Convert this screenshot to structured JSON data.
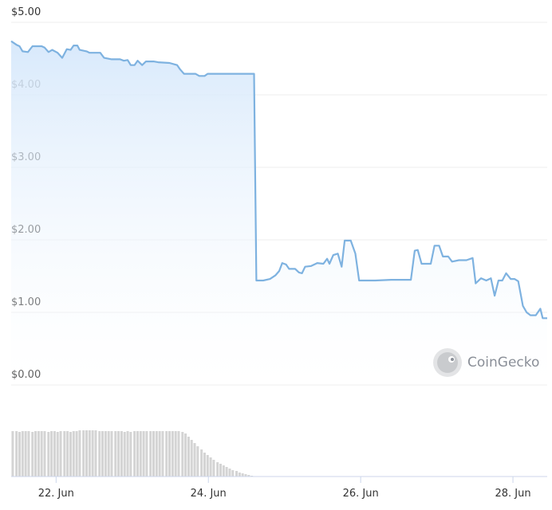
{
  "chart_data": {
    "type": "area",
    "series": [
      {
        "name": "Price",
        "color": "#7eb2e0",
        "x": [
          21.41,
          21.48,
          21.52,
          21.56,
          21.63,
          21.69,
          21.81,
          21.85,
          21.9,
          21.95,
          22.02,
          22.08,
          22.14,
          22.19,
          22.23,
          22.28,
          22.31,
          22.4,
          22.44,
          22.58,
          22.63,
          22.73,
          22.84,
          22.89,
          22.94,
          22.98,
          23.03,
          23.07,
          23.13,
          23.18,
          23.28,
          23.34,
          23.49,
          23.59,
          23.63,
          23.68,
          23.83,
          23.88,
          23.95,
          23.99,
          24.2,
          24.41,
          24.53,
          24.6,
          24.63,
          24.72,
          24.81,
          24.88,
          24.93,
          24.97,
          25.02,
          25.06,
          25.14,
          25.19,
          25.23,
          25.27,
          25.35,
          25.43,
          25.51,
          25.56,
          25.59,
          25.64,
          25.7,
          25.75,
          25.79,
          25.87,
          25.93,
          25.98,
          26.19,
          26.4,
          26.66,
          26.71,
          26.75,
          26.8,
          26.92,
          26.97,
          27.03,
          27.08,
          27.15,
          27.2,
          27.29,
          27.39,
          27.47,
          27.51,
          27.58,
          27.65,
          27.71,
          27.76,
          27.81,
          27.86,
          27.91,
          27.97,
          28.02,
          28.07,
          28.13,
          28.18,
          28.23,
          28.3,
          28.36,
          28.39,
          28.45
        ],
        "values": [
          4.74,
          4.69,
          4.67,
          4.6,
          4.59,
          4.67,
          4.67,
          4.65,
          4.59,
          4.62,
          4.58,
          4.51,
          4.63,
          4.62,
          4.68,
          4.68,
          4.62,
          4.6,
          4.58,
          4.58,
          4.51,
          4.49,
          4.49,
          4.47,
          4.48,
          4.41,
          4.41,
          4.47,
          4.41,
          4.46,
          4.46,
          4.45,
          4.44,
          4.41,
          4.35,
          4.29,
          4.29,
          4.26,
          4.26,
          4.29,
          4.29,
          4.29,
          4.29,
          4.29,
          1.44,
          1.44,
          1.46,
          1.51,
          1.57,
          1.68,
          1.66,
          1.6,
          1.6,
          1.55,
          1.54,
          1.63,
          1.64,
          1.68,
          1.67,
          1.74,
          1.67,
          1.79,
          1.81,
          1.63,
          1.99,
          1.99,
          1.81,
          1.44,
          1.44,
          1.45,
          1.45,
          1.85,
          1.86,
          1.67,
          1.67,
          1.92,
          1.92,
          1.77,
          1.77,
          1.7,
          1.72,
          1.72,
          1.75,
          1.4,
          1.47,
          1.44,
          1.47,
          1.23,
          1.44,
          1.44,
          1.54,
          1.46,
          1.46,
          1.43,
          1.09,
          1.0,
          0.96,
          0.96,
          1.05,
          0.92,
          0.92
        ]
      }
    ],
    "volume": {
      "color": "#d4d4d4",
      "ylim": [
        0,
        60
      ],
      "x": [
        21.43,
        21.48,
        21.52,
        21.56,
        21.6,
        21.64,
        21.69,
        21.73,
        21.77,
        21.81,
        21.85,
        21.9,
        21.94,
        21.98,
        22.02,
        22.06,
        22.11,
        22.15,
        22.19,
        22.23,
        22.27,
        22.31,
        22.36,
        22.4,
        22.44,
        22.48,
        22.52,
        22.57,
        22.61,
        22.65,
        22.69,
        22.73,
        22.78,
        22.82,
        22.86,
        22.9,
        22.94,
        22.98,
        23.03,
        23.07,
        23.11,
        23.15,
        23.19,
        23.24,
        23.28,
        23.32,
        23.36,
        23.4,
        23.45,
        23.49,
        23.53,
        23.57,
        23.61,
        23.66,
        23.7,
        23.74,
        23.78,
        23.82,
        23.86,
        23.91,
        23.95,
        23.99,
        24.03,
        24.07,
        24.12,
        24.16,
        24.2,
        24.24,
        24.28,
        24.32,
        24.37,
        24.41,
        24.45,
        24.49,
        24.53,
        24.57
      ],
      "values": [
        57,
        57,
        56,
        57,
        57,
        57,
        56,
        57,
        57,
        57,
        57,
        56,
        57,
        57,
        56,
        57,
        57,
        57,
        56,
        57,
        57,
        58,
        58,
        58,
        58,
        58,
        58,
        57,
        57,
        57,
        57,
        57,
        57,
        57,
        57,
        56,
        57,
        56,
        57,
        57,
        57,
        57,
        57,
        57,
        57,
        57,
        57,
        57,
        57,
        57,
        57,
        57,
        57,
        56,
        54,
        50,
        46,
        42,
        38,
        34,
        30,
        27,
        24,
        21,
        18,
        16,
        14,
        12,
        10,
        8,
        7,
        5,
        4,
        3,
        2,
        1
      ]
    },
    "xlim": [
      21.41,
      28.45
    ],
    "xticks": [
      {
        "value": 22,
        "label": "22. Jun"
      },
      {
        "value": 24,
        "label": "24. Jun"
      },
      {
        "value": 26,
        "label": "26. Jun"
      },
      {
        "value": 28,
        "label": "28. Jun"
      }
    ],
    "ylim": [
      0,
      5
    ],
    "yticks": [
      {
        "value": 0,
        "label": "$0.00"
      },
      {
        "value": 1,
        "label": "$1.00"
      },
      {
        "value": 2,
        "label": "$2.00"
      },
      {
        "value": 3,
        "label": "$3.00"
      },
      {
        "value": 4,
        "label": "$4.00"
      },
      {
        "value": 5,
        "label": "$5.00"
      }
    ],
    "grid": true,
    "watermark": "CoinGecko"
  }
}
